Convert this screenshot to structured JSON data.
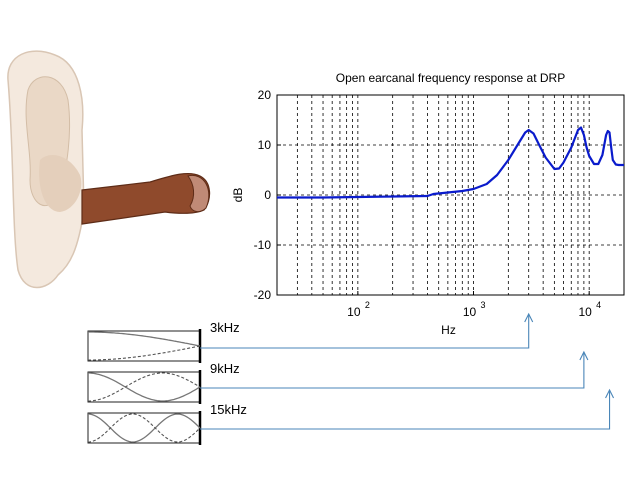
{
  "chart_data": {
    "type": "line",
    "title": "Open earcanal frequency response at DRP",
    "xlabel": "Hz",
    "ylabel": "dB",
    "xscale": "log",
    "xlim": [
      20,
      20000
    ],
    "ylim": [
      -20,
      20
    ],
    "grid": true,
    "y_ticks": [
      {
        "value": -20,
        "label": "-20"
      },
      {
        "value": -10,
        "label": "-10"
      },
      {
        "value": 0,
        "label": "0"
      },
      {
        "value": 10,
        "label": "10"
      },
      {
        "value": 20,
        "label": "20"
      }
    ],
    "x_ticks": [
      {
        "value": 100,
        "base": "10",
        "exp": "2"
      },
      {
        "value": 1000,
        "base": "10",
        "exp": "3"
      },
      {
        "value": 10000,
        "base": "10",
        "exp": "4"
      }
    ],
    "series": [
      {
        "color": "#0a1bcc",
        "x": [
          20,
          50,
          100,
          200,
          400,
          450,
          600,
          800,
          1000,
          1300,
          1600,
          2000,
          2400,
          2800,
          3000,
          3300,
          3700,
          4200,
          5000,
          5500,
          6000,
          7000,
          8000,
          8500,
          9000,
          9500,
          10000,
          11000,
          12000,
          13000,
          14000,
          14500,
          15000,
          15500,
          16000,
          17000,
          18000,
          20000
        ],
        "y": [
          -0.5,
          -0.5,
          -0.4,
          -0.3,
          -0.2,
          0.2,
          0.5,
          0.8,
          1.2,
          2.2,
          4,
          7,
          10,
          12.5,
          13,
          12.3,
          10,
          7.5,
          5.2,
          5.3,
          6.5,
          9.5,
          13,
          13.5,
          12,
          9.5,
          7.8,
          6.2,
          6.2,
          8,
          12,
          12.8,
          12.5,
          9.5,
          7,
          6.1,
          6,
          6
        ]
      }
    ]
  },
  "resonances": [
    {
      "label": "3kHz",
      "freq": 3000,
      "modes": 1
    },
    {
      "label": "9kHz",
      "freq": 9000,
      "modes": 2
    },
    {
      "label": "15kHz",
      "freq": 15000,
      "modes": 3
    }
  ],
  "colors": {
    "arrow": "#4a86b8",
    "skin": "#f2e6da",
    "canal": "#8a4326"
  }
}
